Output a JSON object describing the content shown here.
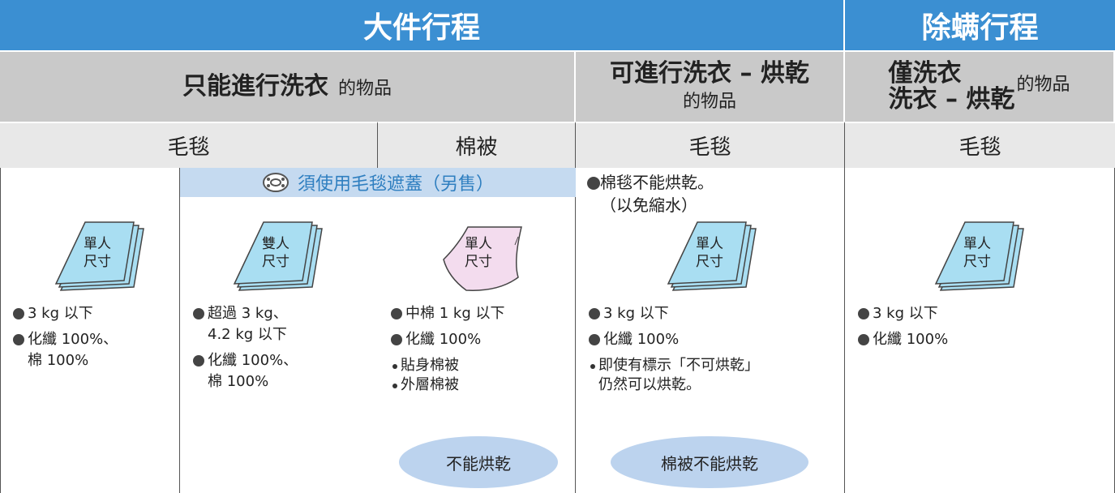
{
  "header": [
    "大件行程",
    "除螨行程"
  ],
  "groups": [
    {
      "bold": [
        "只能進行洗衣"
      ],
      "suffix": "的物品"
    },
    {
      "bold": [
        "可進行洗衣 – 烘乾"
      ],
      "suffix": "的物品"
    },
    {
      "bold": [
        "僅洗衣",
        "洗衣 – 烘乾"
      ],
      "suffix": "的物品"
    }
  ],
  "subheaders": [
    "毛毯",
    "棉被",
    "毛毯",
    "毛毯"
  ],
  "notice": "須使用毛毯遮蓋（另售）",
  "columns": [
    {
      "icon": [
        "單人",
        "尺寸"
      ],
      "icon_color": "#a9def2",
      "items": [
        [
          "3 kg 以下"
        ],
        [
          "化纖 100%、",
          "棉 100%"
        ]
      ]
    },
    {
      "icon": [
        "雙人",
        "尺寸"
      ],
      "icon_color": "#a9def2",
      "items": [
        [
          "超過 3 kg、",
          "4.2 kg 以下"
        ],
        [
          "化纖 100%、",
          "棉 100%"
        ]
      ]
    },
    {
      "icon": [
        "單人",
        "尺寸"
      ],
      "icon_color": "#f3dcee",
      "items": [
        [
          "中棉 1 kg 以下"
        ],
        [
          "化纖 100%"
        ]
      ],
      "small_items": [
        [
          "貼身棉被"
        ],
        [
          "外層棉被"
        ]
      ],
      "oval": "不能烘乾"
    },
    {
      "top_note": [
        "棉毯不能烘乾。",
        "（以免縮水）"
      ],
      "icon": [
        "單人",
        "尺寸"
      ],
      "icon_color": "#a9def2",
      "items": [
        [
          "3 kg 以下"
        ],
        [
          "化纖 100%"
        ]
      ],
      "small_items": [
        [
          "即使有標示「不可烘乾」",
          "仍然可以烘乾。"
        ]
      ],
      "oval": "棉被不能烘乾"
    },
    {
      "icon": [
        "單人",
        "尺寸"
      ],
      "icon_color": "#a9def2",
      "items": [
        [
          "3 kg 以下"
        ],
        [
          "化纖 100%"
        ]
      ]
    }
  ]
}
